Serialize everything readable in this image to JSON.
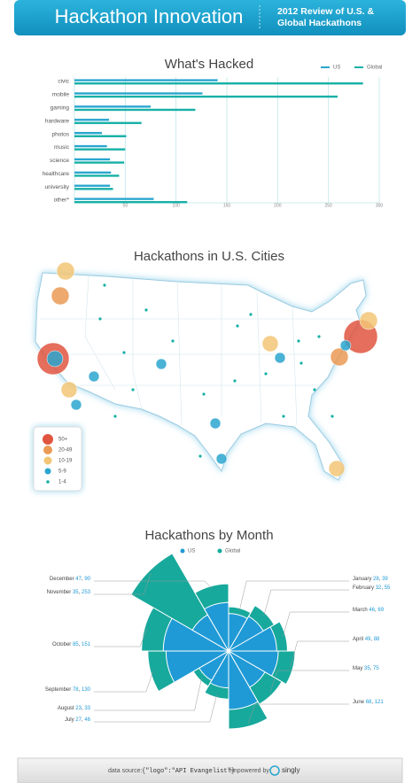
{
  "header": {
    "title": "Hackathon Innovation",
    "subtitle": [
      "2012 Review of U.S. &",
      "Global Hackathons"
    ]
  },
  "chart_data": [
    {
      "type": "bar",
      "orientation": "horizontal",
      "title": "What's Hacked",
      "categories": [
        "civic",
        "mobile",
        "gaming",
        "hardware",
        "photos",
        "music",
        "science",
        "healthcare",
        "university",
        "other*"
      ],
      "series": [
        {
          "name": "US",
          "color": "#2aa6cf",
          "values": [
            141,
            126,
            75,
            34,
            27,
            32,
            35,
            36,
            35,
            78
          ]
        },
        {
          "name": "Global",
          "color": "#17b0a6",
          "values": [
            284,
            259,
            119,
            66,
            51,
            50,
            49,
            44,
            38,
            111
          ]
        }
      ],
      "xlim": [
        0,
        300
      ],
      "xticks": [
        50,
        100,
        150,
        200,
        250,
        300
      ],
      "grid": true,
      "legend": "top-right"
    },
    {
      "type": "map",
      "title": "Hackathons in U.S. Cities",
      "legend_labels": [
        "50+",
        "20-49",
        "10-19",
        "5-9",
        "1-4"
      ],
      "legend_colors": [
        "#e0553f",
        "#eb9a55",
        "#f2c676",
        "#2aa6cf",
        "#17b0a6"
      ]
    },
    {
      "type": "polar",
      "title": "Hackathons by Month",
      "categories": [
        "January",
        "February",
        "March",
        "April",
        "May",
        "June",
        "July",
        "August",
        "September",
        "October",
        "November",
        "December"
      ],
      "value_separator": ", ",
      "series": [
        {
          "name": "US",
          "color": "#1f9ad6",
          "values": [
            28,
            32,
            46,
            49,
            35,
            68,
            27,
            23,
            78,
            85,
            35,
            47
          ]
        },
        {
          "name": "Global",
          "color": "#17a99c",
          "values": [
            39,
            55,
            69,
            88,
            75,
            121,
            46,
            33,
            130,
            151,
            253,
            90
          ]
        }
      ],
      "legend": "top"
    }
  ],
  "footer": {
    "data_source_label": "data source:",
    "data_source": "{\"logo\":\"API Evangelist\"}",
    "empowered_label": "empowered by:",
    "brand": "singly"
  }
}
